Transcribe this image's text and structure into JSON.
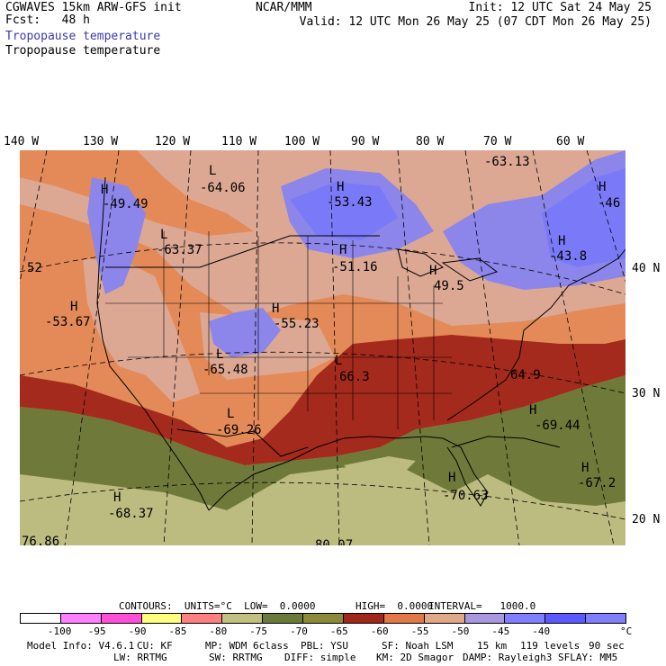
{
  "header": {
    "model": "CGWAVES 15km ARW-GFS init",
    "fcst_label": "Fcst:",
    "fcst_value": "48 h",
    "center": "NCAR/MMM",
    "init": "Init: 12 UTC Sat 24 May 25",
    "valid": "Valid: 12 UTC Mon 26 May 25 (07 CDT Mon 26 May 25)",
    "field_blue": "Tropopause temperature",
    "field_black": "Tropopause temperature"
  },
  "longitudes": [
    "140 W",
    "130 W",
    "120 W",
    "110 W",
    "100 W",
    "90 W",
    "80 W",
    "70 W",
    "60 W"
  ],
  "latitudes": [
    "40 N",
    "30 N",
    "20 N"
  ],
  "extrema": [
    {
      "kind": "L",
      "value": "-64.06"
    },
    {
      "kind": "H",
      "value": "-53.43"
    },
    {
      "kind": "",
      "value": "-63.13"
    },
    {
      "kind": "H",
      "value": "-49.49"
    },
    {
      "kind": "L",
      "value": "-63.37"
    },
    {
      "kind": "H",
      "value": "-51.16"
    },
    {
      "kind": "H",
      "value": "49.5"
    },
    {
      "kind": "H",
      "value": "-46"
    },
    {
      "kind": "H",
      "value": "-43.8"
    },
    {
      "kind": "",
      "value": "52"
    },
    {
      "kind": "H",
      "value": "-53.67"
    },
    {
      "kind": "H",
      "value": "-55.23"
    },
    {
      "kind": "L",
      "value": "-65.48"
    },
    {
      "kind": "L",
      "value": "66.3"
    },
    {
      "kind": "",
      "value": "64.9"
    },
    {
      "kind": "L",
      "value": "-69.26"
    },
    {
      "kind": "H",
      "value": "-69.44"
    },
    {
      "kind": "H",
      "value": "-67.2"
    },
    {
      "kind": "H",
      "value": "-70.63"
    },
    {
      "kind": "H",
      "value": "-68.37"
    },
    {
      "kind": "",
      "value": "76.86"
    },
    {
      "kind": "",
      "value": "80.07"
    }
  ],
  "contours": {
    "line1_a": "CONTOURS:  UNITS=°C  LOW=  0.0000",
    "line1_b": "HIGH=  0.0000",
    "line1_c": "INTERVAL=   1000.0"
  },
  "colorbar": {
    "colors": [
      "#ffffff",
      "#ff80ff",
      "#ff4fd8",
      "#ffff80",
      "#ff8080",
      "#c0c080",
      "#6b7a3a",
      "#8a8a3a",
      "#a02818",
      "#e07848",
      "#e0a888",
      "#a898e0",
      "#7f7fff",
      "#5a5aff",
      "#8080ff"
    ],
    "labels": [
      "-100",
      "-95",
      "-90",
      "-85",
      "-80",
      "-75",
      "-70",
      "-65",
      "-60",
      "-55",
      "-50",
      "-45",
      "-40",
      "°C"
    ]
  },
  "footer": {
    "model_info": "Model Info: V4.6.1",
    "cu": "CU: KF",
    "mp": "MP: WDM 6class",
    "pbl": "PBL: YSU",
    "sf": "SF: Noah LSM",
    "res": "15 km",
    "levels": "119 levels",
    "dt": "90 sec",
    "lw": "LW: RRTMG",
    "sw": "SW: RRTMG",
    "diff": "DIFF: simple",
    "km": "KM: 2D Smagor",
    "damp": "DAMP: Rayleigh3",
    "sflay": "SFLAY: MM5"
  }
}
